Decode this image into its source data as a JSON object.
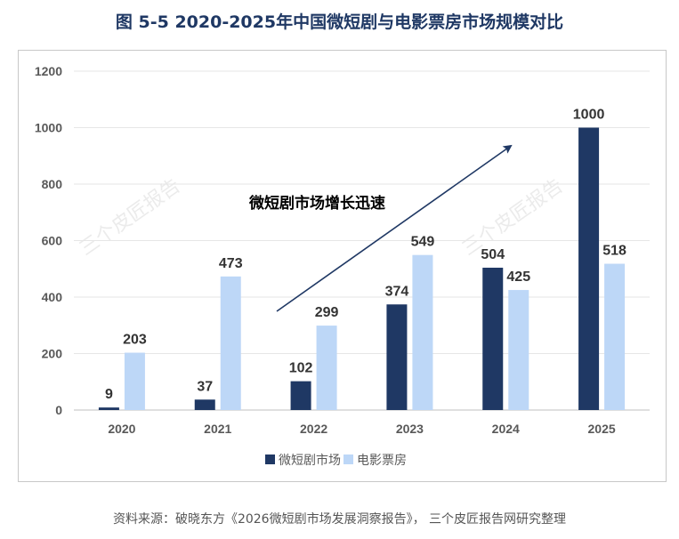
{
  "figure": {
    "title": "图  5-5 2020-2025年中国微短剧与电影票房市场规模对比",
    "source": "资料来源：破晓东方《2026微短剧市场发展洞察报告》， 三个皮匠报告网研究整理",
    "watermark": "三个皮匠报告"
  },
  "chart_data": {
    "type": "bar",
    "title": "2020-2025年中国微短剧与电影票房市场规模对比",
    "categories": [
      "2020",
      "2021",
      "2022",
      "2023",
      "2024",
      "2025"
    ],
    "series": [
      {
        "name": "微短剧市场",
        "color": "#1f3864",
        "values": [
          9,
          37,
          102,
          374,
          504,
          1000
        ]
      },
      {
        "name": "电影票房",
        "color": "#bdd7f7",
        "values": [
          203,
          473,
          299,
          549,
          425,
          518
        ]
      }
    ],
    "ylim": [
      0,
      1200
    ],
    "yticks": [
      0,
      200,
      400,
      600,
      800,
      1000,
      1200
    ],
    "grid": true,
    "legend": "bottom",
    "annotation": {
      "text": "微短剧市场增长迅速",
      "style": "arrow"
    }
  }
}
